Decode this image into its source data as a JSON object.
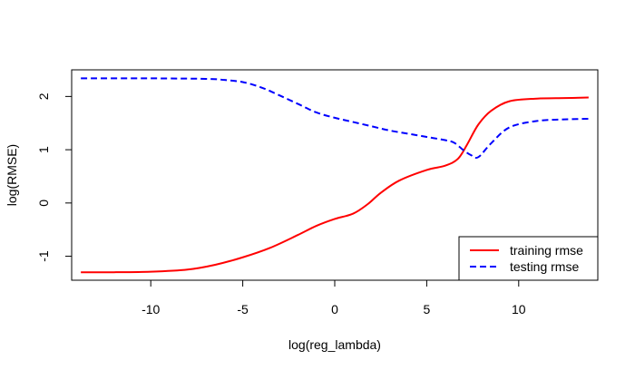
{
  "chart_data": {
    "type": "line",
    "title": "",
    "xlabel": "log(reg_lambda)",
    "ylabel": "log(RMSE)",
    "xlim": [
      -14.3,
      14.3
    ],
    "ylim": [
      -1.45,
      2.5
    ],
    "x_ticks": [
      -10,
      -5,
      0,
      5,
      10
    ],
    "y_ticks": [
      -1,
      0,
      1,
      2
    ],
    "grid": false,
    "legend_position": "bottom-right",
    "series": [
      {
        "name": "training rmse",
        "color": "#ff0000",
        "line_style": "solid",
        "x": [
          -13.8,
          -12,
          -10,
          -8,
          -6.5,
          -5,
          -3.5,
          -2,
          -1,
          0,
          1,
          1.8,
          2.5,
          3.5,
          5,
          6,
          6.7,
          7.2,
          7.8,
          8.5,
          9.5,
          11,
          12.5,
          13.8
        ],
        "y": [
          -1.3,
          -1.3,
          -1.29,
          -1.25,
          -1.16,
          -1.02,
          -0.84,
          -0.6,
          -0.43,
          -0.3,
          -0.2,
          -0.02,
          0.19,
          0.42,
          0.62,
          0.7,
          0.83,
          1.1,
          1.47,
          1.73,
          1.91,
          1.96,
          1.97,
          1.98
        ]
      },
      {
        "name": "testing rmse",
        "color": "#0000ff",
        "line_style": "dashed",
        "x": [
          -13.8,
          -10,
          -7,
          -6,
          -5,
          -4,
          -3,
          -2,
          -1,
          0,
          1,
          2,
          3,
          4,
          5,
          6,
          6.5,
          7,
          7.4,
          7.8,
          8.5,
          9.5,
          11,
          12.5,
          13.8
        ],
        "y": [
          2.34,
          2.34,
          2.33,
          2.31,
          2.27,
          2.17,
          2.02,
          1.86,
          1.7,
          1.6,
          1.52,
          1.44,
          1.36,
          1.3,
          1.24,
          1.18,
          1.13,
          0.99,
          0.9,
          0.86,
          1.12,
          1.42,
          1.54,
          1.57,
          1.58
        ]
      }
    ]
  }
}
